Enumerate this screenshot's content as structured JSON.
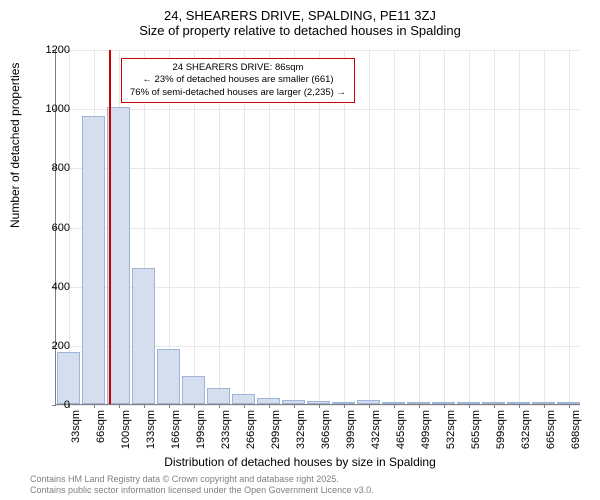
{
  "title": {
    "line1": "24, SHEARERS DRIVE, SPALDING, PE11 3ZJ",
    "line2": "Size of property relative to detached houses in Spalding"
  },
  "chart": {
    "type": "histogram",
    "ylabel": "Number of detached properties",
    "xlabel": "Distribution of detached houses by size in Spalding",
    "ylim": [
      0,
      1200
    ],
    "ytick_step": 200,
    "yticks": [
      0,
      200,
      400,
      600,
      800,
      1000,
      1200
    ],
    "xticks": [
      "33sqm",
      "66sqm",
      "100sqm",
      "133sqm",
      "166sqm",
      "199sqm",
      "233sqm",
      "266sqm",
      "299sqm",
      "332sqm",
      "366sqm",
      "399sqm",
      "432sqm",
      "465sqm",
      "499sqm",
      "532sqm",
      "565sqm",
      "599sqm",
      "632sqm",
      "665sqm",
      "698sqm"
    ],
    "bar_values": [
      175,
      975,
      1005,
      460,
      185,
      95,
      55,
      35,
      22,
      14,
      10,
      8,
      12,
      4,
      2,
      1,
      1,
      0,
      0,
      0,
      1
    ],
    "bar_color": "#d4deee",
    "bar_border_color": "#9fb4d6",
    "grid_color": "#e8e8e8",
    "background_color": "#ffffff",
    "axis_color": "#808080",
    "marker_color": "#cc0000",
    "marker_position_index": 1.6,
    "annotation": {
      "line1": "24 SHEARERS DRIVE: 86sqm",
      "line2": "← 23% of detached houses are smaller (661)",
      "line3": "76% of semi-detached houses are larger (2,235) →",
      "border_color": "#cc0000"
    }
  },
  "footer": {
    "line1": "Contains HM Land Registry data © Crown copyright and database right 2025.",
    "line2": "Contains public sector information licensed under the Open Government Licence v3.0."
  }
}
